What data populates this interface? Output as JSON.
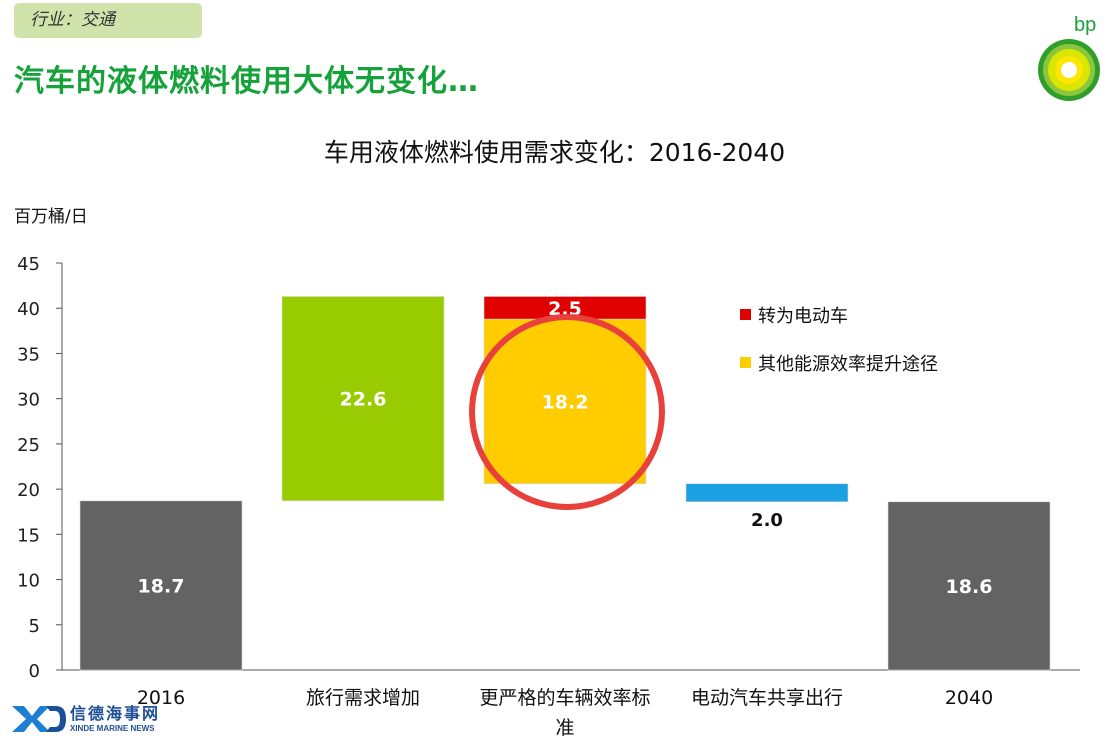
{
  "header": {
    "tag": "行业：交通",
    "headline": "汽车的液体燃料使用大体无变化…",
    "logo_text": "bp"
  },
  "footer": {
    "brand_cn": "信德海事网",
    "brand_en": "XINDE MARINE NEWS"
  },
  "colors": {
    "base_bar": "#636363",
    "travel_bar": "#99cc00",
    "ev_bar": "#e00000",
    "efficiency_bar": "#ffcc00",
    "sharing_bar": "#1ba1e2",
    "highlight_circle": "#e8403a",
    "headline": "#16a23a"
  },
  "chart_data": {
    "type": "bar",
    "subtype": "waterfall",
    "title": "车用液体燃料使用需求变化：2016-2040",
    "ylabel": "百万桶/日",
    "ylim": [
      0,
      45
    ],
    "yticks": [
      0,
      5,
      10,
      15,
      20,
      25,
      30,
      35,
      40,
      45
    ],
    "grid": false,
    "legend_position": "right",
    "categories": [
      "2016",
      "旅行需求增加",
      "更严格的车辆效率标准",
      "电动汽车共享出行",
      "2040"
    ],
    "bars": [
      {
        "category": "2016",
        "segments": [
          {
            "bottom": 0,
            "top": 18.7,
            "label": "18.7",
            "color": "#636363"
          }
        ]
      },
      {
        "category": "旅行需求增加",
        "segments": [
          {
            "bottom": 18.7,
            "top": 41.3,
            "label": "22.6",
            "color": "#99cc00"
          }
        ]
      },
      {
        "category": "更严格的车辆效率标准",
        "segments": [
          {
            "bottom": 20.6,
            "top": 38.8,
            "label": "18.2",
            "color": "#ffcc00",
            "series": "其他能源效率提升途径"
          },
          {
            "bottom": 38.8,
            "top": 41.3,
            "label": "2.5",
            "color": "#e00000",
            "series": "转为电动车"
          }
        ]
      },
      {
        "category": "电动汽车共享出行",
        "segments": [
          {
            "bottom": 18.6,
            "top": 20.6,
            "label": "2.0",
            "color": "#1ba1e2",
            "label_below": true
          }
        ]
      },
      {
        "category": "2040",
        "segments": [
          {
            "bottom": 0,
            "top": 18.6,
            "label": "18.6",
            "color": "#636363"
          }
        ]
      }
    ],
    "legend": [
      {
        "name": "转为电动车",
        "color": "#e00000"
      },
      {
        "name": "其他能源效率提升途径",
        "color": "#ffcc00"
      }
    ],
    "annotations": [
      {
        "type": "circle",
        "target": "更严格的车辆效率标准",
        "color": "#e8403a"
      }
    ]
  }
}
